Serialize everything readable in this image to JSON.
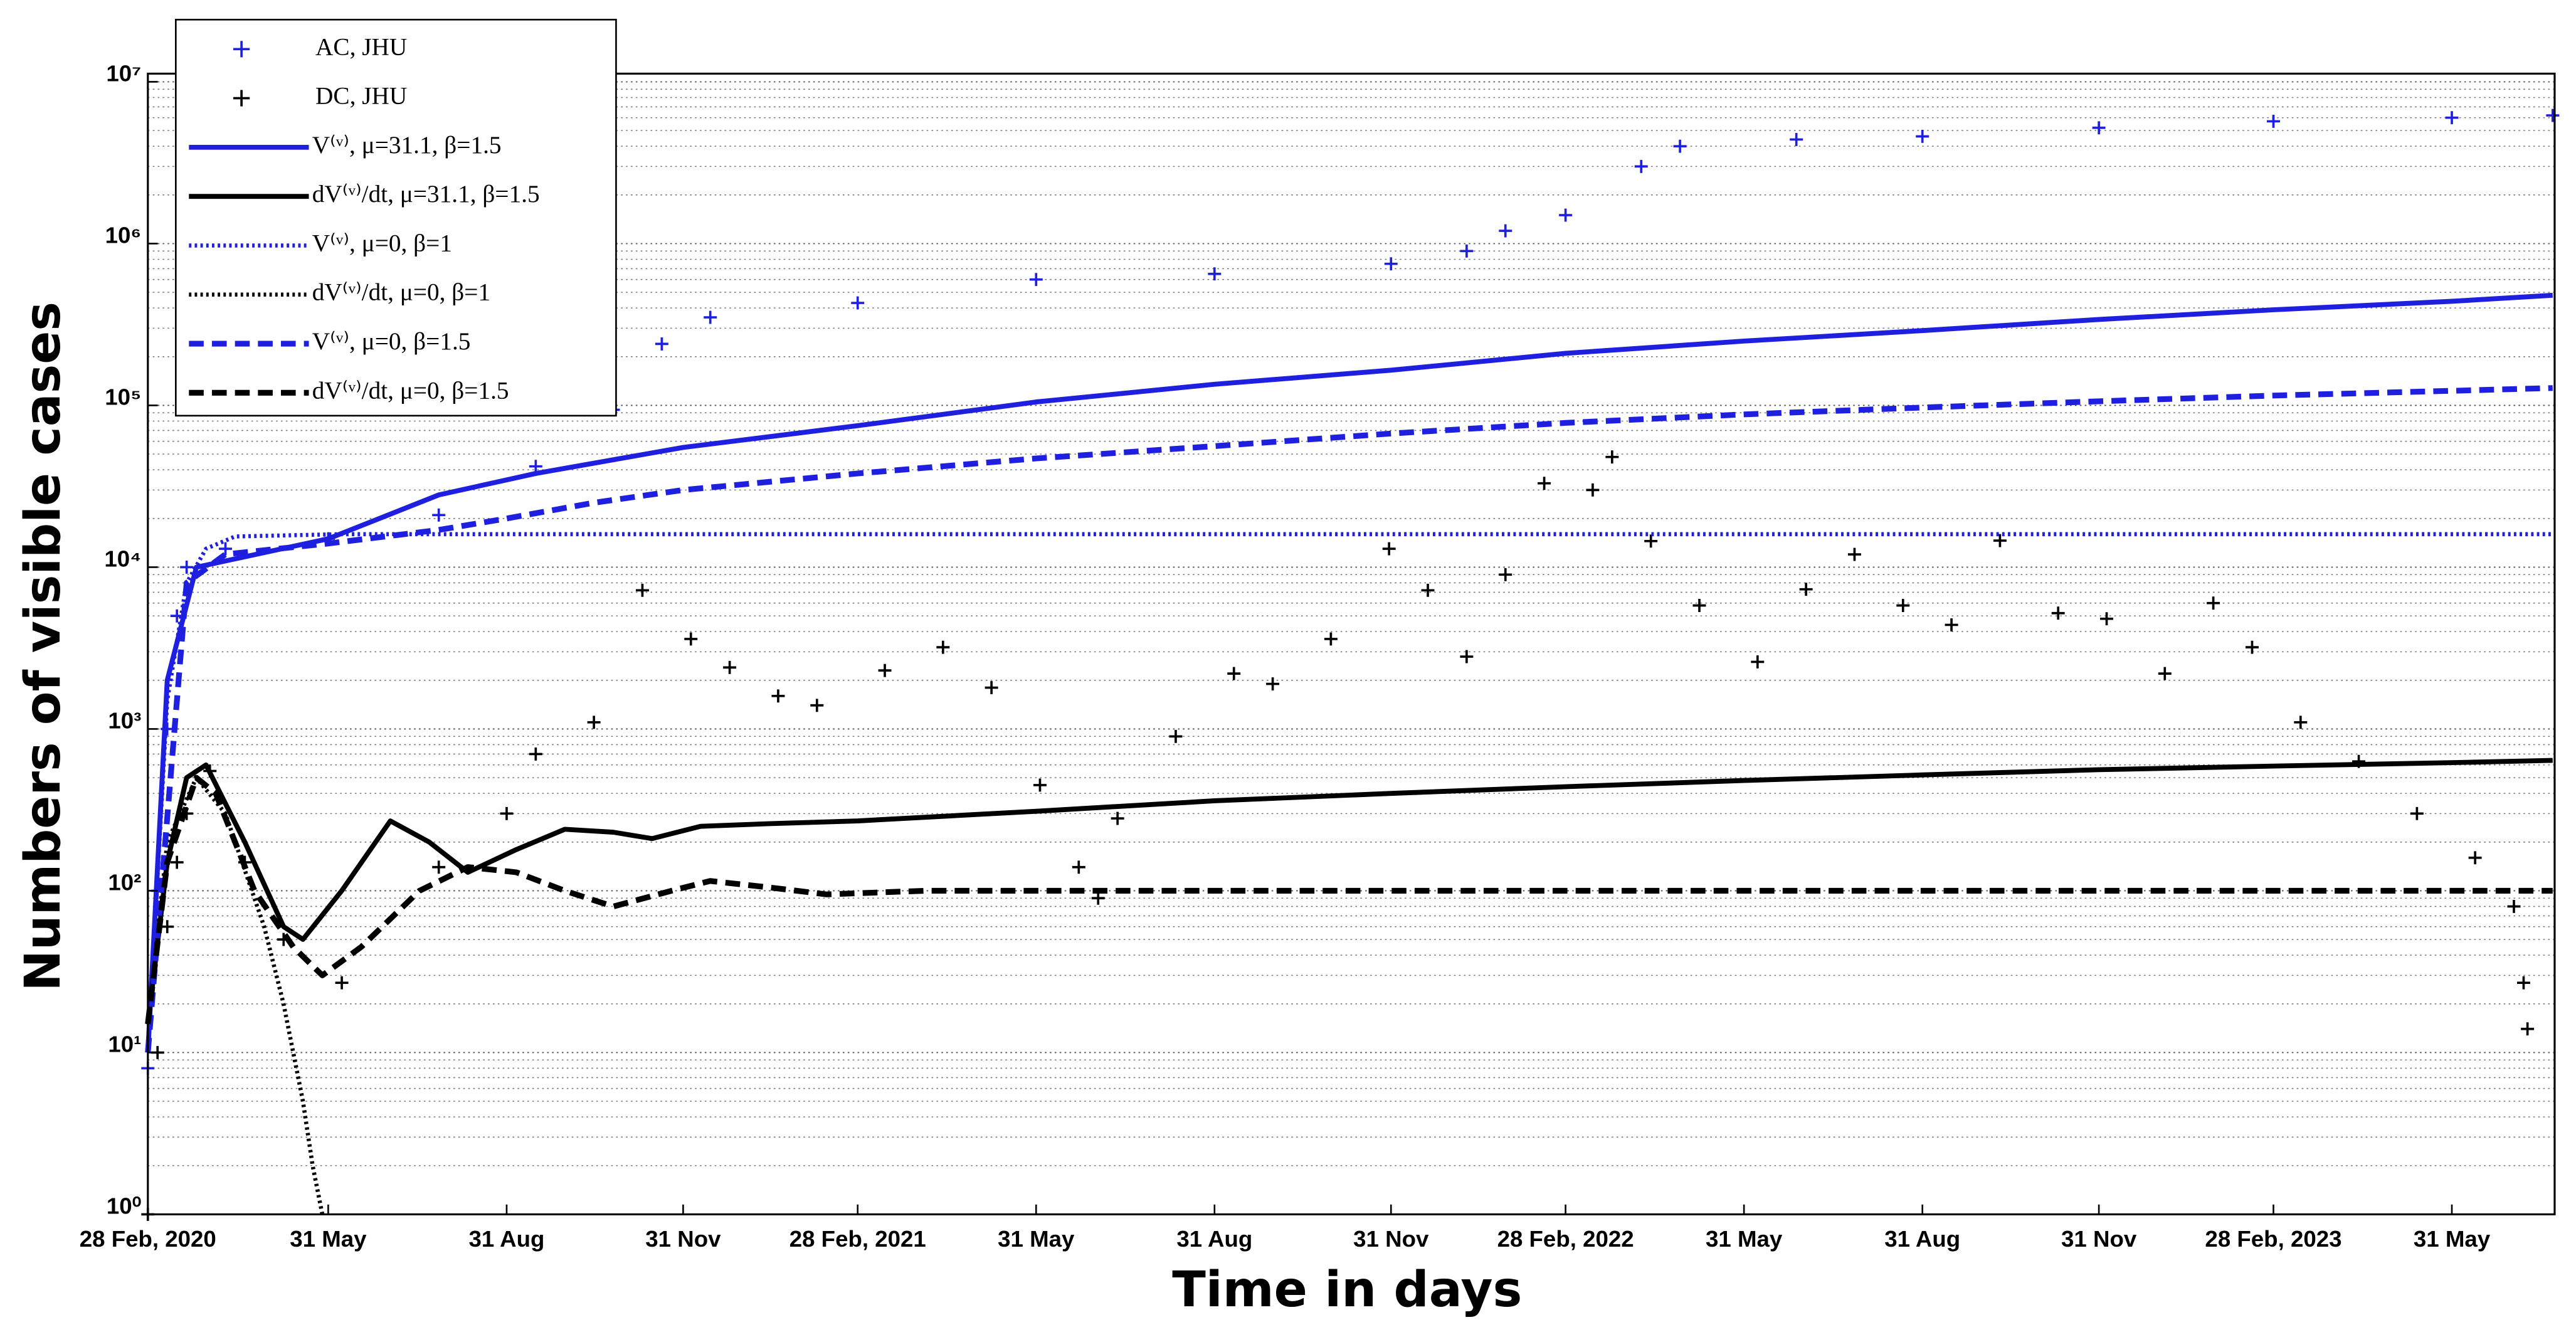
{
  "chart_data": {
    "type": "line",
    "log_y": true,
    "grid": true,
    "legend": "upper left",
    "xlabel": "Time in days",
    "ylabel": "Numbers of visible cases",
    "xlim": [
      0,
      1241
    ],
    "ylim": [
      1,
      10000000
    ],
    "xticks": [
      {
        "value": 0,
        "label": "28 Feb, 2020"
      },
      {
        "value": 93,
        "label": "31 May"
      },
      {
        "value": 185,
        "label": "31 Aug"
      },
      {
        "value": 276,
        "label": "31 Nov"
      },
      {
        "value": 366,
        "label": "28 Feb, 2021"
      },
      {
        "value": 458,
        "label": "31 May"
      },
      {
        "value": 550,
        "label": "31 Aug"
      },
      {
        "value": 641,
        "label": "31 Nov"
      },
      {
        "value": 731,
        "label": "28 Feb, 2022"
      },
      {
        "value": 823,
        "label": "31 May"
      },
      {
        "value": 915,
        "label": "31 Aug"
      },
      {
        "value": 1006,
        "label": "31 Nov"
      },
      {
        "value": 1096,
        "label": "28 Feb, 2023"
      },
      {
        "value": 1188,
        "label": "31 May"
      }
    ],
    "yticks": [
      {
        "value": 1,
        "label": "10⁰"
      },
      {
        "value": 10,
        "label": "10¹"
      },
      {
        "value": 100,
        "label": "10²"
      },
      {
        "value": 1000,
        "label": "10³"
      },
      {
        "value": 10000,
        "label": "10⁴"
      },
      {
        "value": 100000,
        "label": "10⁵"
      },
      {
        "value": 1000000,
        "label": "10⁶"
      },
      {
        "value": 10000000,
        "label": "10⁷"
      }
    ],
    "series": [
      {
        "name": "AC, JHU",
        "color": "#1f1fe0",
        "style": "markers",
        "x": [
          0,
          5,
          10,
          15,
          20,
          40,
          93,
          150,
          200,
          240,
          265,
          290,
          366,
          458,
          550,
          641,
          680,
          700,
          731,
          770,
          790,
          850,
          915,
          1006,
          1096,
          1188,
          1240
        ],
        "values": [
          8,
          100,
          1000,
          5000,
          10000,
          13000,
          15000,
          21000,
          42000,
          94000,
          240000,
          350000,
          430000,
          600000,
          650000,
          750000,
          900000,
          1200000,
          1500000,
          3000000,
          4000000,
          4400000,
          4600000,
          5200000,
          5700000,
          6000000,
          6200000
        ]
      },
      {
        "name": "DC, JHU",
        "color": "#000000",
        "style": "markers",
        "x": [
          0,
          5,
          10,
          15,
          20,
          32,
          50,
          70,
          100,
          150,
          185,
          200,
          230,
          255,
          280,
          300,
          325,
          345,
          380,
          410,
          435,
          460,
          480,
          490,
          500,
          530,
          560,
          580,
          610,
          640,
          660,
          680,
          700,
          720,
          745,
          755,
          775,
          800,
          830,
          855,
          880,
          905,
          930,
          955,
          985,
          1010,
          1040,
          1065,
          1085,
          1110,
          1140,
          1170,
          1200,
          1220,
          1225,
          1227
        ],
        "values": [
          1,
          10,
          60,
          150,
          300,
          550,
          150,
          50,
          27,
          140,
          300,
          700,
          1100,
          7200,
          3600,
          2400,
          1600,
          1400,
          2300,
          3200,
          1800,
          450,
          140,
          90,
          280,
          900,
          2200,
          1900,
          3600,
          13000,
          7200,
          2800,
          9000,
          33000,
          30000,
          48000,
          14500,
          5800,
          2600,
          7300,
          12000,
          5800,
          4400,
          14600,
          5200,
          4800,
          2200,
          6000,
          3200,
          1100,
          630,
          300,
          160,
          80,
          27,
          14
        ]
      },
      {
        "name": "V⁽ᵛ⁾, μ=31.1, β=1.5",
        "color": "#1f1fe0",
        "style": "solid",
        "x": [
          0,
          10,
          25,
          93,
          150,
          200,
          276,
          366,
          458,
          550,
          641,
          731,
          823,
          915,
          1006,
          1096,
          1188,
          1240
        ],
        "values": [
          10,
          2000,
          10000,
          15000,
          28000,
          38000,
          55000,
          75000,
          105000,
          135000,
          165000,
          210000,
          250000,
          290000,
          340000,
          390000,
          440000,
          480000
        ]
      },
      {
        "name": "dV⁽ᵛ⁾/dt, μ=31.1, β=1.5",
        "color": "#000000",
        "style": "solid",
        "x": [
          0,
          10,
          20,
          30,
          50,
          70,
          80,
          100,
          125,
          145,
          165,
          190,
          215,
          240,
          260,
          285,
          320,
          366,
          458,
          550,
          641,
          731,
          823,
          915,
          1006,
          1096,
          1188,
          1240
        ],
        "values": [
          15,
          150,
          500,
          600,
          200,
          60,
          50,
          100,
          270,
          200,
          130,
          180,
          240,
          230,
          210,
          250,
          260,
          270,
          310,
          360,
          400,
          440,
          480,
          520,
          560,
          590,
          620,
          640
        ]
      },
      {
        "name": "V⁽ᵛ⁾, μ=0, β=1",
        "color": "#1f1fe0",
        "style": "dotted",
        "x": [
          0,
          10,
          20,
          30,
          45,
          100,
          1240
        ],
        "values": [
          10,
          1500,
          8000,
          13000,
          15500,
          16000,
          16000
        ]
      },
      {
        "name": "dV⁽ᵛ⁾/dt,  μ=0, β=1",
        "color": "#000000",
        "style": "dotted",
        "x": [
          0,
          10,
          25,
          40,
          60,
          70,
          80,
          85,
          90
        ],
        "values": [
          15,
          200,
          500,
          300,
          60,
          20,
          5,
          2,
          1
        ]
      },
      {
        "name": "V⁽ᵛ⁾, μ=0, β=1.5",
        "color": "#1f1fe0",
        "style": "dashed",
        "x": [
          0,
          20,
          40,
          93,
          150,
          185,
          230,
          276,
          366,
          458,
          550,
          641,
          731,
          823,
          915,
          1006,
          1096,
          1188,
          1240
        ],
        "values": [
          10,
          8000,
          12000,
          14000,
          17000,
          20000,
          25000,
          30000,
          38000,
          47000,
          56000,
          67000,
          78000,
          88000,
          97000,
          106000,
          115000,
          123000,
          128000
        ]
      },
      {
        "name": "dV⁽ᵛ⁾/dt, μ=0, β=1.5",
        "color": "#000000",
        "style": "dashed",
        "x": [
          0,
          10,
          25,
          35,
          55,
          75,
          90,
          110,
          140,
          165,
          190,
          215,
          240,
          270,
          290,
          320,
          350,
          400,
          500,
          1240
        ],
        "values": [
          15,
          150,
          500,
          400,
          100,
          45,
          30,
          45,
          100,
          140,
          130,
          100,
          80,
          100,
          115,
          105,
          95,
          100,
          100,
          100
        ]
      }
    ]
  }
}
